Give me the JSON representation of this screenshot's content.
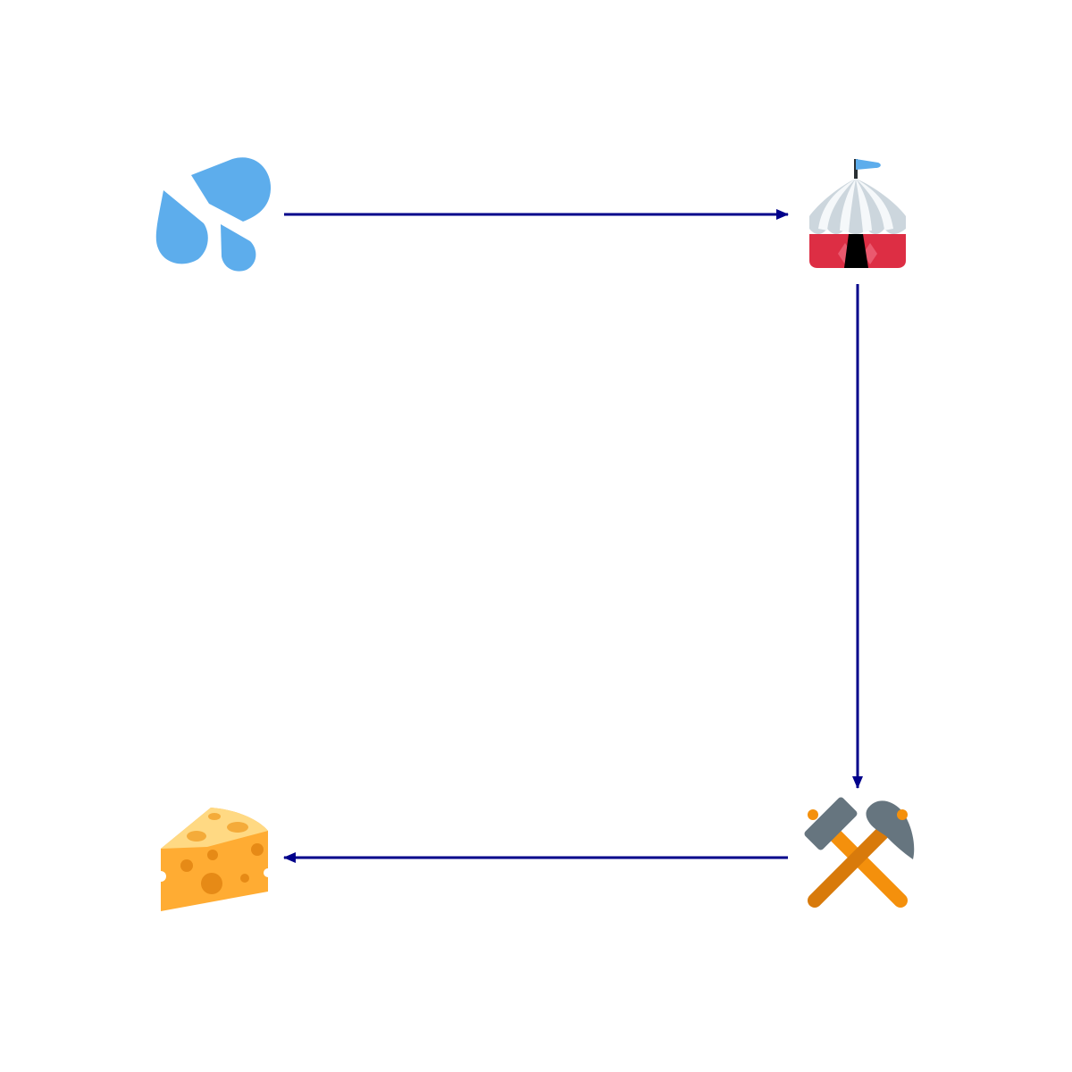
{
  "diagram": {
    "type": "cycle-flow",
    "colors": {
      "background": "#ffffff",
      "arrow": "#00008b"
    },
    "nodes": [
      {
        "id": "n1",
        "icon": "sweat-droplets-icon",
        "emoji": "💦"
      },
      {
        "id": "n2",
        "icon": "circus-tent-icon",
        "emoji": "🎪"
      },
      {
        "id": "n3",
        "icon": "hammer-and-pick-icon",
        "emoji": "⚒"
      },
      {
        "id": "n4",
        "icon": "cheese-wedge-icon",
        "emoji": "🧀"
      }
    ],
    "edges": [
      {
        "from": "n1",
        "to": "n2"
      },
      {
        "from": "n2",
        "to": "n3"
      },
      {
        "from": "n3",
        "to": "n4"
      }
    ]
  }
}
